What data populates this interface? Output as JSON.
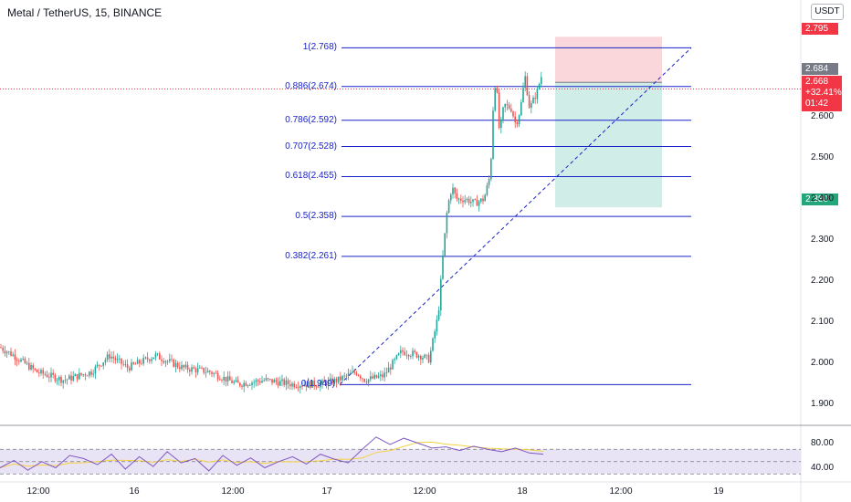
{
  "header": {
    "title": "Metal / TetherUS, 15, BINANCE",
    "unit": "USDT"
  },
  "price_axis": {
    "ticks": [
      "2.600",
      "2.500",
      "2.400",
      "2.300",
      "2.200",
      "2.100",
      "2.000",
      "1.900"
    ],
    "stop_loss_price": "2.795",
    "take_profit_price": "2.380",
    "entry_price": "2.684",
    "last_price": "2.668",
    "last_change": "+32.41%",
    "countdown": "01:42"
  },
  "rsi_axis": {
    "ticks": [
      "80.00",
      "40.00"
    ]
  },
  "time_axis": {
    "ticks": [
      "12:00",
      "16",
      "12:00",
      "17",
      "12:00",
      "18",
      "12:00",
      "19"
    ]
  },
  "colors": {
    "fib_line": "#1a23c8",
    "candle_up": "#26a69a",
    "candle_down": "#ef5350",
    "stop_zone": "#f7c9cf",
    "target_zone": "#c5e8e2",
    "rsi_line": "#7e57c2",
    "rsi_ma": "#f5d142",
    "rsi_band": "#e9e3f6"
  },
  "chart_data": {
    "type": "candlestick",
    "title": "Metal / TetherUS, 15, BINANCE",
    "ylim": [
      1.85,
      2.84
    ],
    "fib_levels": [
      {
        "label": "1(2.768)",
        "value": 2.768
      },
      {
        "label": "0.886(2.674)",
        "value": 2.674
      },
      {
        "label": "0.786(2.592)",
        "value": 2.592
      },
      {
        "label": "0.707(2.528)",
        "value": 2.528
      },
      {
        "label": "0.618(2.455)",
        "value": 2.455
      },
      {
        "label": "0.5(2.358)",
        "value": 2.358
      },
      {
        "label": "0.382(2.261)",
        "value": 2.261
      },
      {
        "label": "0(1.949)",
        "value": 1.949
      }
    ],
    "position": {
      "stop": 2.795,
      "entry": 2.684,
      "target": 2.38
    },
    "price_path": [
      [
        0,
        2.04
      ],
      [
        15,
        2.02
      ],
      [
        40,
        1.98
      ],
      [
        70,
        1.96
      ],
      [
        100,
        1.98
      ],
      [
        120,
        2.02
      ],
      [
        140,
        1.99
      ],
      [
        170,
        2.02
      ],
      [
        200,
        1.99
      ],
      [
        230,
        1.98
      ],
      [
        260,
        1.95
      ],
      [
        290,
        1.96
      ],
      [
        320,
        1.95
      ],
      [
        350,
        1.95
      ],
      [
        370,
        1.96
      ],
      [
        390,
        1.98
      ],
      [
        400,
        1.96
      ],
      [
        420,
        1.97
      ],
      [
        440,
        2.03
      ],
      [
        460,
        2.02
      ],
      [
        470,
        2.01
      ],
      [
        480,
        2.12
      ],
      [
        485,
        2.26
      ],
      [
        490,
        2.38
      ],
      [
        495,
        2.43
      ],
      [
        500,
        2.4
      ],
      [
        510,
        2.4
      ],
      [
        520,
        2.39
      ],
      [
        530,
        2.4
      ],
      [
        537,
        2.46
      ],
      [
        540,
        2.62
      ],
      [
        543,
        2.7
      ],
      [
        547,
        2.56
      ],
      [
        552,
        2.63
      ],
      [
        560,
        2.62
      ],
      [
        565,
        2.58
      ],
      [
        570,
        2.62
      ],
      [
        575,
        2.7
      ],
      [
        580,
        2.62
      ],
      [
        588,
        2.66
      ],
      [
        593,
        2.7
      ],
      [
        595,
        2.668
      ]
    ],
    "rsi": {
      "ylim": [
        20,
        100
      ],
      "values": [
        40,
        52,
        36,
        50,
        40,
        60,
        55,
        45,
        62,
        38,
        58,
        42,
        66,
        48,
        55,
        35,
        60,
        44,
        56,
        40,
        50,
        58,
        46,
        62,
        54,
        48,
        70,
        90,
        78,
        88,
        80,
        72,
        74,
        68,
        75,
        70,
        66,
        72,
        64,
        62
      ]
    }
  }
}
